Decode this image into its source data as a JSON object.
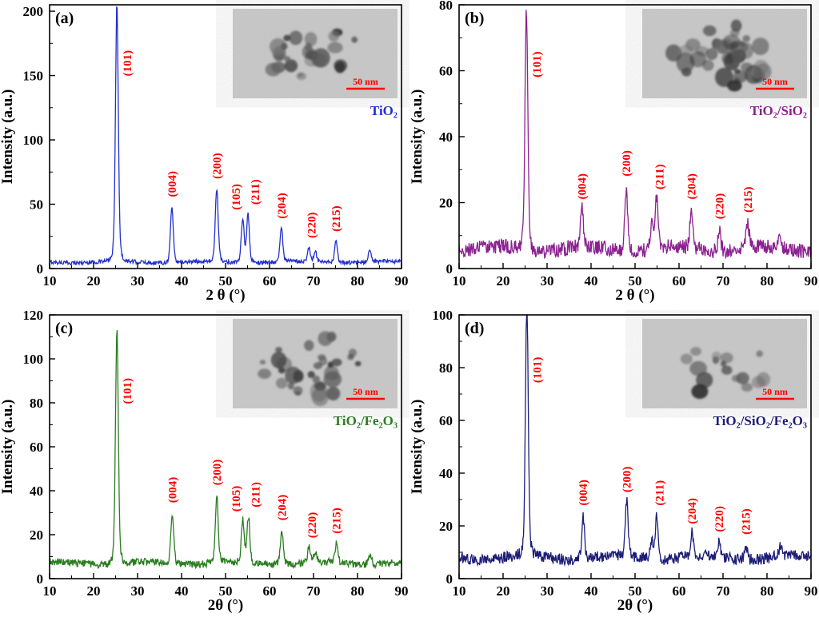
{
  "peak_label_color": "#ff0000",
  "scale_bar_color": "#ff0000",
  "chart_data": [
    {
      "type": "line",
      "panel_letter": "(a)",
      "sample_label": "TiO₂",
      "line_color": "#2130cc",
      "xlabel": "2 θ (°)",
      "ylabel": "Intensity (a.u.)",
      "xlim": [
        10,
        90
      ],
      "ylim": [
        0,
        205
      ],
      "xticks": [
        10,
        20,
        30,
        40,
        50,
        60,
        70,
        80,
        90
      ],
      "yticks": [
        0,
        50,
        100,
        150,
        200
      ],
      "baseline_intensity": 5,
      "noise_amplitude": 1.6,
      "peaks": [
        {
          "hkl": "(101)",
          "two_theta": 25.3,
          "intensity": 200,
          "label_dx": 2.3,
          "label_y": 147
        },
        {
          "hkl": "(004)",
          "two_theta": 37.8,
          "intensity": 43
        },
        {
          "hkl": "(200)",
          "two_theta": 48.0,
          "intensity": 57
        },
        {
          "hkl": "(105)",
          "two_theta": 53.9,
          "intensity": 33,
          "label_dx": -1.5
        },
        {
          "hkl": "(211)",
          "two_theta": 55.1,
          "intensity": 37,
          "label_dx": 1.6
        },
        {
          "hkl": "(204)",
          "two_theta": 62.7,
          "intensity": 26
        },
        {
          "hkl": "(220)",
          "two_theta": 68.9,
          "intensity": 11,
          "label_dx": 0.6
        },
        {
          "hkl": "",
          "two_theta": 70.4,
          "intensity": 8
        },
        {
          "hkl": "(215)",
          "two_theta": 75.1,
          "intensity": 16
        },
        {
          "hkl": "",
          "two_theta": 82.8,
          "intensity": 9
        }
      ],
      "inset": {
        "type": "TEM micrograph",
        "scale_bar_label": "50 nm",
        "blob_count": 26,
        "blob_seed": 11
      }
    },
    {
      "type": "line",
      "panel_letter": "(b)",
      "sample_label": "TiO₂/SiO₂",
      "line_color": "#8b2190",
      "xlabel": "2 θ (°)",
      "ylabel": "Intensity (a.u.)",
      "xlim": [
        10,
        90
      ],
      "ylim": [
        0,
        80
      ],
      "xticks": [
        10,
        20,
        30,
        40,
        50,
        60,
        70,
        80,
        90
      ],
      "yticks": [
        0,
        20,
        40,
        60,
        80
      ],
      "baseline_intensity": 6,
      "noise_amplitude": 2.2,
      "peaks": [
        {
          "hkl": "(101)",
          "two_theta": 25.3,
          "intensity": 72,
          "label_dx": 2.3,
          "label_y": 57
        },
        {
          "hkl": "(004)",
          "two_theta": 37.9,
          "intensity": 12
        },
        {
          "hkl": "(200)",
          "two_theta": 48.0,
          "intensity": 19
        },
        {
          "hkl": "",
          "two_theta": 53.8,
          "intensity": 8
        },
        {
          "hkl": "(211)",
          "two_theta": 54.9,
          "intensity": 15,
          "label_dx": 0.6
        },
        {
          "hkl": "(204)",
          "two_theta": 62.8,
          "intensity": 12
        },
        {
          "hkl": "(220)",
          "two_theta": 69.2,
          "intensity": 6
        },
        {
          "hkl": "(215)",
          "two_theta": 75.6,
          "intensity": 8
        },
        {
          "hkl": "",
          "two_theta": 82.9,
          "intensity": 4
        }
      ],
      "inset": {
        "type": "TEM micrograph",
        "scale_bar_label": "50 nm",
        "blob_count": 42,
        "blob_seed": 23
      }
    },
    {
      "type": "line",
      "panel_letter": "(c)",
      "sample_label": "TiO₂/Fe₂O₃",
      "line_color": "#2a7d20",
      "xlabel": "2θ (°)",
      "ylabel": "Intensity (a.u.)",
      "xlim": [
        10,
        90
      ],
      "ylim": [
        0,
        120
      ],
      "xticks": [
        10,
        20,
        30,
        40,
        50,
        60,
        70,
        80,
        90
      ],
      "yticks": [
        0,
        20,
        40,
        60,
        80,
        100,
        120
      ],
      "baseline_intensity": 7,
      "noise_amplitude": 1.7,
      "peaks": [
        {
          "hkl": "(101)",
          "two_theta": 25.3,
          "intensity": 107,
          "label_dx": 2.3,
          "label_y": 78
        },
        {
          "hkl": "(004)",
          "two_theta": 37.9,
          "intensity": 23
        },
        {
          "hkl": "(200)",
          "two_theta": 48.0,
          "intensity": 31
        },
        {
          "hkl": "(105)",
          "two_theta": 53.9,
          "intensity": 19,
          "label_dx": -1.5
        },
        {
          "hkl": "(211)",
          "two_theta": 55.2,
          "intensity": 21,
          "label_dx": 1.6
        },
        {
          "hkl": "(204)",
          "two_theta": 62.8,
          "intensity": 15
        },
        {
          "hkl": "(220)",
          "two_theta": 69.0,
          "intensity": 7,
          "label_dx": 0.6
        },
        {
          "hkl": "",
          "two_theta": 70.4,
          "intensity": 5
        },
        {
          "hkl": "(215)",
          "two_theta": 75.2,
          "intensity": 9
        },
        {
          "hkl": "",
          "two_theta": 82.8,
          "intensity": 5
        }
      ],
      "inset": {
        "type": "TEM micrograph",
        "scale_bar_label": "50 nm",
        "blob_count": 32,
        "blob_seed": 37
      }
    },
    {
      "type": "line",
      "panel_letter": "(d)",
      "sample_label": "TiO₂/SiO₂/Fe₂O₃",
      "line_color": "#1d1d78",
      "xlabel": "2θ (°)",
      "ylabel": "Intensity (a.u.)",
      "xlim": [
        10,
        90
      ],
      "ylim": [
        0,
        100
      ],
      "xticks": [
        10,
        20,
        30,
        40,
        50,
        60,
        70,
        80,
        90
      ],
      "yticks": [
        0,
        20,
        40,
        60,
        80,
        100
      ],
      "baseline_intensity": 8,
      "noise_amplitude": 2.2,
      "peaks": [
        {
          "hkl": "(101)",
          "two_theta": 25.4,
          "intensity": 96,
          "label_dx": 2.3,
          "label_y": 73
        },
        {
          "hkl": "(004)",
          "two_theta": 38.2,
          "intensity": 16
        },
        {
          "hkl": "(200)",
          "two_theta": 48.1,
          "intensity": 21
        },
        {
          "hkl": "",
          "two_theta": 53.8,
          "intensity": 7
        },
        {
          "hkl": "(211)",
          "two_theta": 54.9,
          "intensity": 16,
          "label_dx": 0.6
        },
        {
          "hkl": "(204)",
          "two_theta": 62.9,
          "intensity": 9
        },
        {
          "hkl": "(220)",
          "two_theta": 69.1,
          "intensity": 6
        },
        {
          "hkl": "(215)",
          "two_theta": 75.2,
          "intensity": 5
        },
        {
          "hkl": "",
          "two_theta": 83.0,
          "intensity": 4
        }
      ],
      "inset": {
        "type": "TEM micrograph",
        "scale_bar_label": "50 nm",
        "blob_count": 16,
        "blob_seed": 51
      }
    }
  ]
}
